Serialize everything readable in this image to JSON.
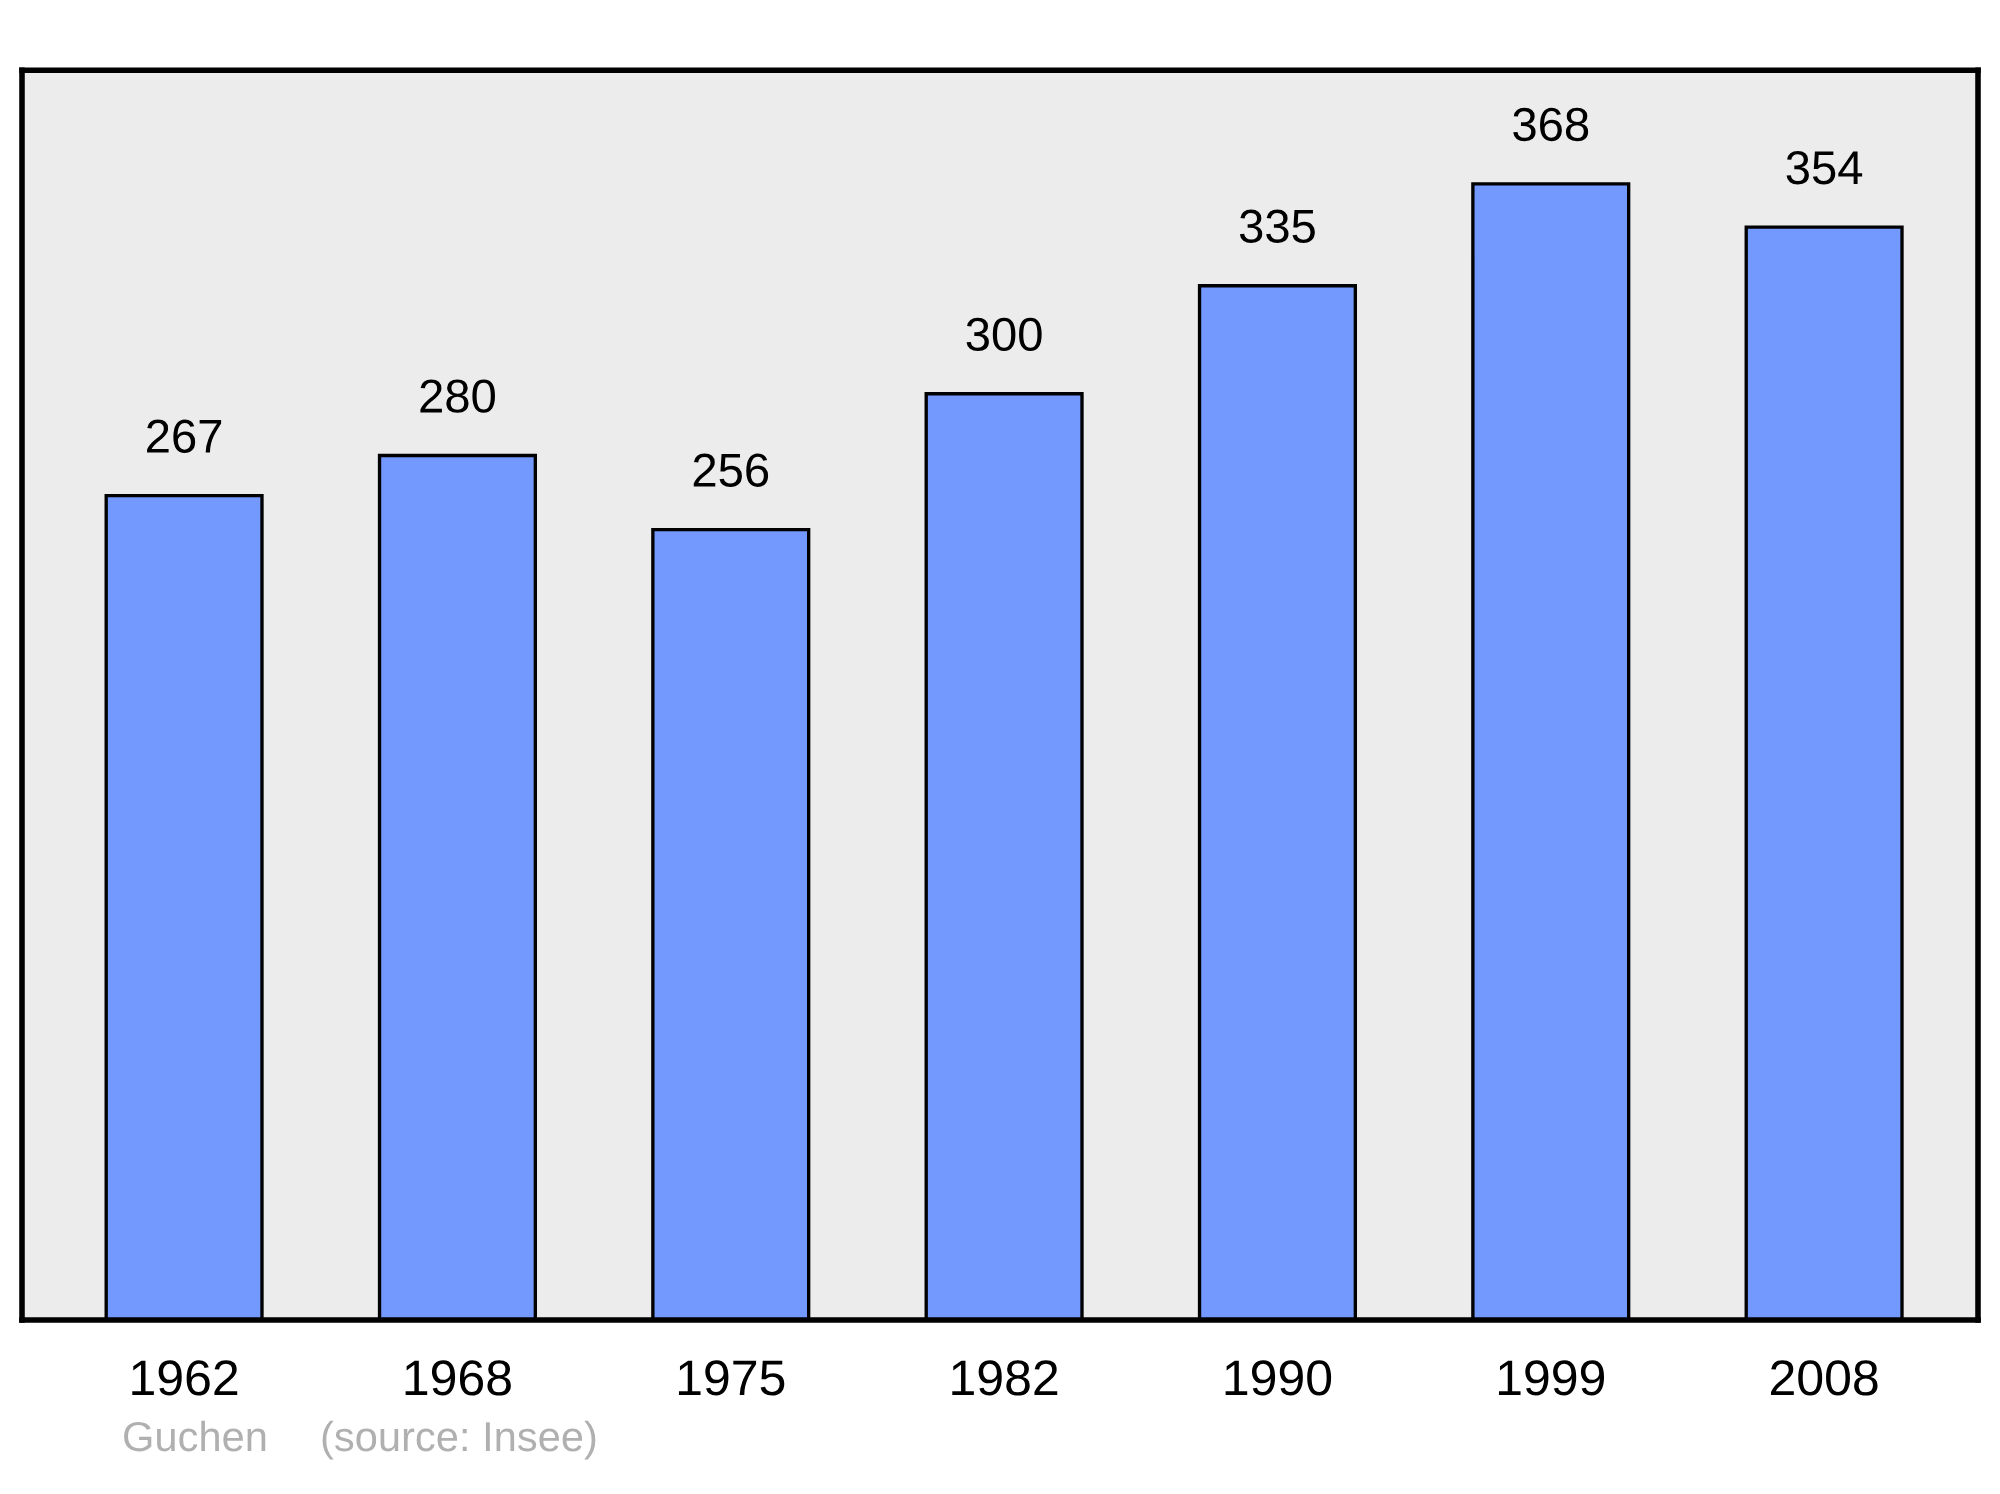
{
  "chart_data": {
    "type": "bar",
    "categories": [
      "1962",
      "1968",
      "1975",
      "1982",
      "1990",
      "1999",
      "2008"
    ],
    "values": [
      267,
      280,
      256,
      300,
      335,
      368,
      354
    ],
    "color": "#7399ff",
    "data_labels": true,
    "grid": false,
    "legend": false,
    "annotations": [
      "Guchen",
      "(source: Insee)"
    ]
  }
}
